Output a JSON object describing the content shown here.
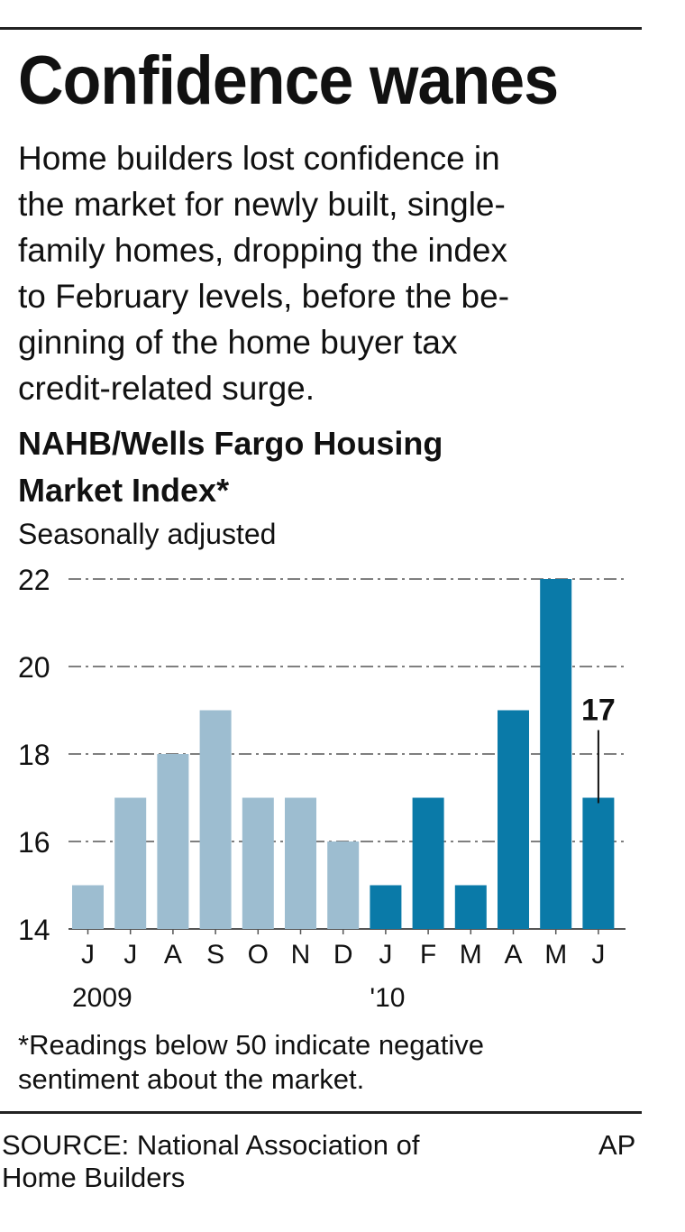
{
  "headline": "Confidence wanes",
  "description_lines": [
    "Home builders lost confidence in",
    "the market for newly built, single-",
    "family homes, dropping the index",
    "to February levels, before the be-",
    "ginning of the home buyer tax",
    "credit-related surge."
  ],
  "footnote_lines": [
    "*Readings below 50 indicate negative",
    "sentiment about the market."
  ],
  "source_lines": [
    "SOURCE: National Association of",
    "Home Builders"
  ],
  "credit": "AP",
  "chart_data": {
    "type": "bar",
    "title_lines": [
      "NAHB/Wells Fargo Housing",
      "Market Index*"
    ],
    "subtitle": "Seasonally adjusted",
    "categories": [
      "J",
      "J",
      "A",
      "S",
      "O",
      "N",
      "D",
      "J",
      "F",
      "M",
      "A",
      "M",
      "J"
    ],
    "values": [
      15,
      17,
      18,
      19,
      17,
      17,
      16,
      15,
      17,
      15,
      19,
      22,
      17
    ],
    "year_labels": [
      {
        "label": "2009",
        "category_index": 0
      },
      {
        "label": "'10",
        "category_index": 7
      }
    ],
    "ylim": [
      14,
      22
    ],
    "yticks": [
      "14",
      "16",
      "18",
      "20",
      "22"
    ],
    "grid": true,
    "annotation": {
      "label": "17",
      "category_index": 12
    },
    "colors": {
      "2009": "#9dbdd0",
      "2010": "#0a7aa8",
      "grid": "#555555",
      "axis": "#555555"
    }
  }
}
